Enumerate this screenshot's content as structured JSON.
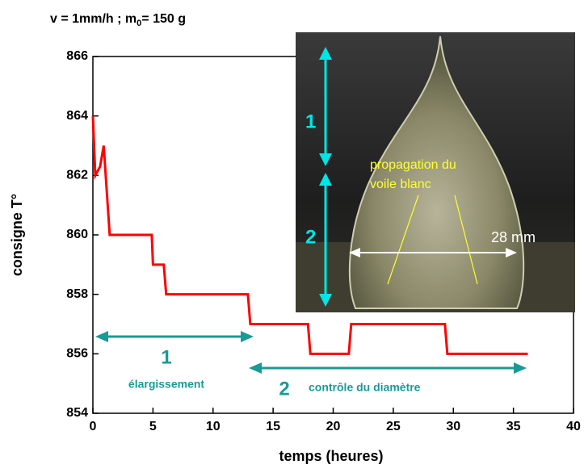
{
  "chart_data": {
    "type": "line",
    "title": "v = 1mm/h ; m",
    "title_subscript": "0",
    "title_end": "= 150 g",
    "xlabel": "temps (heures)",
    "ylabel": "consigne T°",
    "x": [
      0,
      0.2,
      0.6,
      0.9,
      1.4,
      4.9,
      5.0,
      5.9,
      6.1,
      12.9,
      13.1,
      17.9,
      18.1,
      21.3,
      21.5,
      29.3,
      29.5,
      36.2
    ],
    "values": [
      864,
      862,
      862.3,
      863,
      860,
      860,
      859,
      859,
      858,
      858,
      857,
      857,
      856,
      856,
      857,
      857,
      856,
      856
    ],
    "color": "#ff0000",
    "xlim": [
      0,
      40
    ],
    "xticks": [
      0,
      5,
      10,
      15,
      20,
      25,
      30,
      35,
      40
    ],
    "ylim": [
      854,
      866
    ],
    "yticks": [
      854,
      856,
      858,
      860,
      862,
      864,
      866
    ],
    "grid": false,
    "annotations": [
      "1",
      "élargissement",
      "2",
      "contrôle du diamètre"
    ],
    "photo_labels": [
      "1",
      "2",
      "propagation du",
      "voile blanc",
      "28 mm"
    ]
  }
}
